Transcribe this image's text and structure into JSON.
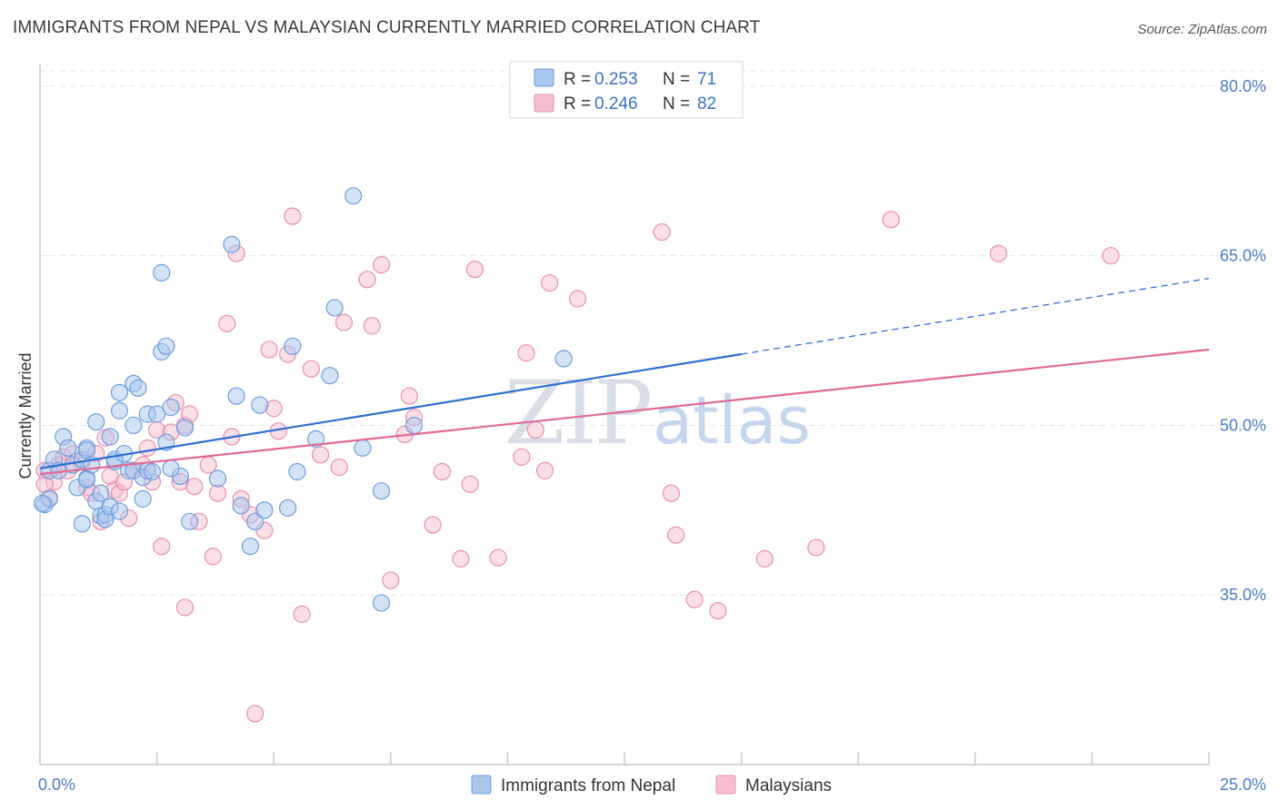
{
  "title": "IMMIGRANTS FROM NEPAL VS MALAYSIAN CURRENTLY MARRIED CORRELATION CHART",
  "source": "Source: ZipAtlas.com",
  "watermark": {
    "zip": "ZIP",
    "atlas": "atlas"
  },
  "colors": {
    "blue_fill": "#a9c6ee",
    "blue_stroke": "#6f9fdc",
    "blue_line": "#2f6fd0",
    "pink_fill": "#f6bfd0",
    "pink_stroke": "#e98fae",
    "pink_line": "#e06a93",
    "grid": "#e3e6ea",
    "axis": "#c9ccd1"
  },
  "legend": {
    "rows": [
      {
        "r_label": "R = ",
        "r_value": "0.253",
        "n_label": "N = ",
        "n_value": "71"
      },
      {
        "r_label": "R = ",
        "r_value": "0.246",
        "n_label": "N = ",
        "n_value": "82"
      }
    ]
  },
  "chart_data": {
    "type": "scatter",
    "title": "IMMIGRANTS FROM NEPAL VS MALAYSIAN CURRENTLY MARRIED CORRELATION CHART",
    "xlabel": "",
    "ylabel": "Currently Married",
    "xlim": [
      0,
      25
    ],
    "ylim": [
      20,
      82
    ],
    "x_tick_labels": {
      "0": "0.0%",
      "25": "25.0%"
    },
    "y_ticks": [
      35,
      50,
      65,
      80
    ],
    "y_tick_labels": [
      "35.0%",
      "50.0%",
      "65.0%",
      "80.0%"
    ],
    "grid": true,
    "legend_position": "top-center",
    "series": [
      {
        "name": "Immigrants from Nepal",
        "color": "#a9c6ee",
        "trend": {
          "x_start": 0,
          "y_start": 46.2,
          "x_solid_end": 15,
          "y_solid_end": 56.3,
          "x_end": 25,
          "y_end": 63.0
        },
        "points": [
          [
            0.1,
            43.0
          ],
          [
            0.2,
            43.5
          ],
          [
            0.2,
            46.0
          ],
          [
            0.3,
            47.0
          ],
          [
            0.4,
            46.0
          ],
          [
            0.5,
            49.0
          ],
          [
            0.6,
            48.0
          ],
          [
            0.7,
            46.5
          ],
          [
            0.8,
            44.5
          ],
          [
            0.9,
            41.3
          ],
          [
            0.9,
            47.0
          ],
          [
            1.0,
            45.3
          ],
          [
            1.0,
            48.0
          ],
          [
            1.0,
            47.8
          ],
          [
            1.1,
            46.5
          ],
          [
            1.2,
            50.3
          ],
          [
            1.2,
            43.3
          ],
          [
            1.3,
            44.0
          ],
          [
            1.3,
            42.0
          ],
          [
            1.4,
            42.1
          ],
          [
            1.4,
            41.7
          ],
          [
            1.5,
            42.8
          ],
          [
            1.5,
            49.0
          ],
          [
            1.6,
            46.8
          ],
          [
            1.6,
            47.0
          ],
          [
            1.7,
            42.4
          ],
          [
            1.7,
            52.9
          ],
          [
            1.7,
            51.3
          ],
          [
            1.8,
            47.5
          ],
          [
            1.9,
            46.0
          ],
          [
            2.0,
            53.7
          ],
          [
            2.0,
            46.0
          ],
          [
            2.0,
            50.0
          ],
          [
            2.1,
            53.3
          ],
          [
            2.2,
            43.5
          ],
          [
            2.2,
            45.4
          ],
          [
            2.3,
            51.0
          ],
          [
            2.3,
            46.0
          ],
          [
            2.4,
            45.9
          ],
          [
            2.5,
            51.0
          ],
          [
            2.6,
            56.5
          ],
          [
            2.6,
            63.5
          ],
          [
            2.7,
            57.0
          ],
          [
            2.7,
            48.5
          ],
          [
            2.8,
            51.6
          ],
          [
            3.0,
            45.5
          ],
          [
            3.1,
            49.8
          ],
          [
            3.2,
            41.5
          ],
          [
            3.8,
            45.3
          ],
          [
            4.1,
            66.0
          ],
          [
            4.2,
            52.6
          ],
          [
            4.3,
            42.9
          ],
          [
            4.5,
            39.3
          ],
          [
            4.6,
            41.5
          ],
          [
            4.7,
            51.8
          ],
          [
            4.8,
            42.5
          ],
          [
            5.3,
            42.7
          ],
          [
            5.4,
            57.0
          ],
          [
            5.5,
            45.9
          ],
          [
            5.9,
            48.8
          ],
          [
            6.2,
            54.4
          ],
          [
            6.3,
            60.4
          ],
          [
            6.7,
            70.3
          ],
          [
            6.9,
            48.0
          ],
          [
            7.3,
            44.2
          ],
          [
            7.3,
            34.3
          ],
          [
            8.0,
            50.0
          ],
          [
            11.2,
            55.9
          ],
          [
            0.05,
            43.1
          ],
          [
            1.0,
            45.2
          ],
          [
            2.8,
            46.2
          ]
        ]
      },
      {
        "name": "Malaysians",
        "color": "#f6bfd0",
        "trend": {
          "x_start": 0,
          "y_start": 45.7,
          "x_end": 25,
          "y_end": 56.7
        },
        "points": [
          [
            0.1,
            46.0
          ],
          [
            0.2,
            43.6
          ],
          [
            0.3,
            45.0
          ],
          [
            0.4,
            46.5
          ],
          [
            0.5,
            47.2
          ],
          [
            0.6,
            46.0
          ],
          [
            0.7,
            47.5
          ],
          [
            0.9,
            46.8
          ],
          [
            1.0,
            44.5
          ],
          [
            1.1,
            44.0
          ],
          [
            1.2,
            47.5
          ],
          [
            1.3,
            41.5
          ],
          [
            1.4,
            48.9
          ],
          [
            1.5,
            45.5
          ],
          [
            1.6,
            44.3
          ],
          [
            1.7,
            44.0
          ],
          [
            1.8,
            45.0
          ],
          [
            1.9,
            41.8
          ],
          [
            2.0,
            46.0
          ],
          [
            2.2,
            46.5
          ],
          [
            2.3,
            48.0
          ],
          [
            2.4,
            45.0
          ],
          [
            2.5,
            49.6
          ],
          [
            2.6,
            39.3
          ],
          [
            2.8,
            49.4
          ],
          [
            2.9,
            52.0
          ],
          [
            3.0,
            45.0
          ],
          [
            3.1,
            50.0
          ],
          [
            3.1,
            33.9
          ],
          [
            3.2,
            51.0
          ],
          [
            3.3,
            44.6
          ],
          [
            3.4,
            41.5
          ],
          [
            3.6,
            46.5
          ],
          [
            3.7,
            38.4
          ],
          [
            3.8,
            44.0
          ],
          [
            4.0,
            59.0
          ],
          [
            4.1,
            49.0
          ],
          [
            4.2,
            65.2
          ],
          [
            4.3,
            43.5
          ],
          [
            4.5,
            42.1
          ],
          [
            4.6,
            24.5
          ],
          [
            4.8,
            40.7
          ],
          [
            4.9,
            56.7
          ],
          [
            5.0,
            51.5
          ],
          [
            5.1,
            49.5
          ],
          [
            5.3,
            56.3
          ],
          [
            5.4,
            68.5
          ],
          [
            5.6,
            33.3
          ],
          [
            5.8,
            55.0
          ],
          [
            6.0,
            47.4
          ],
          [
            6.4,
            46.3
          ],
          [
            6.5,
            59.1
          ],
          [
            7.0,
            62.9
          ],
          [
            7.1,
            58.8
          ],
          [
            7.3,
            64.2
          ],
          [
            7.5,
            36.3
          ],
          [
            7.8,
            49.2
          ],
          [
            7.9,
            52.6
          ],
          [
            8.0,
            50.7
          ],
          [
            8.4,
            41.2
          ],
          [
            8.6,
            45.9
          ],
          [
            9.0,
            38.2
          ],
          [
            9.2,
            44.8
          ],
          [
            9.3,
            63.8
          ],
          [
            9.8,
            38.3
          ],
          [
            10.3,
            47.2
          ],
          [
            10.4,
            56.4
          ],
          [
            10.6,
            49.6
          ],
          [
            10.8,
            46.0
          ],
          [
            10.9,
            62.6
          ],
          [
            11.5,
            61.2
          ],
          [
            13.3,
            67.1
          ],
          [
            13.5,
            44.0
          ],
          [
            13.6,
            40.3
          ],
          [
            14.0,
            34.6
          ],
          [
            14.5,
            33.6
          ],
          [
            15.5,
            38.2
          ],
          [
            16.6,
            39.2
          ],
          [
            18.2,
            68.2
          ],
          [
            20.5,
            65.2
          ],
          [
            22.9,
            65.0
          ],
          [
            0.1,
            44.8
          ]
        ]
      }
    ]
  }
}
